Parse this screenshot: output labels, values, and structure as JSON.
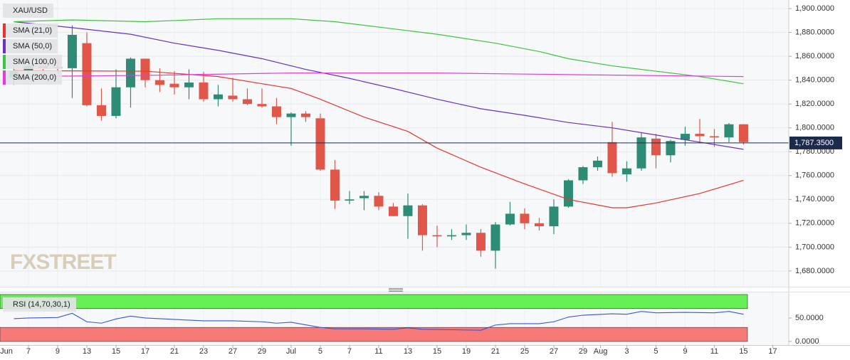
{
  "chart_data": [
    {
      "type": "candlestick",
      "title": "XAU/USD",
      "watermark": "FXSTREET",
      "x": [
        1,
        2,
        3,
        4,
        5,
        6,
        7,
        8,
        9,
        10,
        11,
        12,
        13,
        14,
        15,
        16,
        17,
        18,
        19,
        20,
        21,
        22,
        23,
        24,
        25,
        26,
        27,
        28,
        29,
        30,
        31,
        32,
        33,
        34,
        35,
        36,
        37,
        38,
        39,
        40,
        41,
        42,
        43,
        44,
        45,
        46,
        47,
        48,
        49,
        50,
        51
      ],
      "open": [
        1842,
        1848,
        1852,
        1851,
        1850,
        1871,
        1819,
        1810,
        1834,
        1858,
        1840,
        1837,
        1834,
        1838,
        1824,
        1827,
        1824,
        1820,
        1818,
        1809,
        1812,
        1808,
        1765,
        1739,
        1741,
        1743,
        1734,
        1726,
        1735,
        1710,
        1709,
        1710,
        1712,
        1697,
        1719,
        1728,
        1720,
        1717.5,
        1734,
        1756,
        1767,
        1788,
        1761,
        1766,
        1791,
        1777,
        1790,
        1795,
        1793,
        1792,
        1803
      ],
      "high": [
        1852,
        1856,
        1858,
        1856,
        1886,
        1880,
        1833,
        1849,
        1859,
        1858,
        1850,
        1847.5,
        1849,
        1847,
        1836,
        1842,
        1833,
        1833,
        1825,
        1813,
        1814,
        1812,
        1773,
        1747,
        1747,
        1746,
        1737,
        1745,
        1736,
        1718,
        1715,
        1719,
        1715,
        1721,
        1738,
        1732.5,
        1724.5,
        1740,
        1757,
        1768,
        1776,
        1805,
        1772,
        1796,
        1795,
        1790,
        1801,
        1807.5,
        1799,
        1804,
        1803
      ],
      "low": [
        1836,
        1843,
        1845,
        1846,
        1825,
        1818,
        1806,
        1808,
        1817,
        1834,
        1830,
        1828,
        1824,
        1822,
        1818,
        1822,
        1819,
        1817,
        1803,
        1785,
        1805,
        1764,
        1732,
        1736,
        1731,
        1731,
        1726,
        1707,
        1697,
        1700,
        1706,
        1706,
        1692,
        1682,
        1718,
        1715,
        1714,
        1711,
        1733,
        1753,
        1764,
        1759,
        1755,
        1764,
        1766,
        1771,
        1785,
        1788,
        1784,
        1788,
        1786
      ],
      "close": [
        1848,
        1852,
        1850,
        1850,
        1878,
        1819,
        1810,
        1834,
        1858,
        1840,
        1836,
        1834,
        1838,
        1824,
        1828,
        1824,
        1820,
        1818,
        1809,
        1812,
        1809,
        1765,
        1739,
        1740,
        1743,
        1734,
        1726,
        1735,
        1710,
        1709,
        1710,
        1712,
        1697,
        1719,
        1728,
        1720,
        1717.5,
        1734,
        1756,
        1767,
        1772.5,
        1762,
        1766,
        1792,
        1777,
        1789,
        1795,
        1793,
        1792,
        1803,
        1788
      ],
      "up_color": "#2e8b76",
      "down_color": "#e0574a",
      "series": [
        {
          "name": "SMA (21,0)",
          "color": "#e8352a",
          "x": [
            1,
            10,
            15,
            18,
            20,
            22,
            25,
            28,
            30,
            33,
            36,
            39,
            42,
            43,
            45,
            48,
            51
          ],
          "values": [
            1848,
            1847.5,
            1843,
            1837,
            1833,
            1824,
            1809,
            1797,
            1783,
            1767,
            1753,
            1740,
            1733,
            1733,
            1737,
            1745,
            1756
          ]
        },
        {
          "name": "SMA (50,0)",
          "color": "#6a2fc8",
          "x": [
            1,
            5,
            9,
            12,
            15,
            18,
            21,
            24,
            27,
            30,
            33,
            36,
            39,
            42,
            45,
            48,
            51
          ],
          "values": [
            1889,
            1884,
            1878.5,
            1871,
            1865,
            1858,
            1849,
            1841.5,
            1833,
            1824,
            1816,
            1810.5,
            1804.5,
            1800,
            1794,
            1788,
            1782
          ]
        },
        {
          "name": "SMA (100,0)",
          "color": "#3cc43c",
          "x": [
            1,
            5,
            10,
            15,
            20,
            23,
            27,
            30,
            34,
            37,
            39,
            42,
            45,
            48,
            51
          ],
          "values": [
            1889,
            1890.5,
            1889,
            1891.5,
            1891.5,
            1889,
            1883,
            1878.5,
            1871,
            1864,
            1858,
            1852,
            1847.5,
            1843,
            1837
          ]
        },
        {
          "name": "SMA (200,0)",
          "color": "#e23be0",
          "x": [
            1,
            10,
            20,
            30,
            40,
            51
          ],
          "values": [
            1843,
            1844,
            1846,
            1846,
            1844.5,
            1843
          ]
        }
      ],
      "xlim": [
        0.05,
        54.1
      ],
      "ylim": [
        1666.8,
        1907.2
      ],
      "grid": true,
      "yticks": [
        {
          "value": 1680,
          "label": "1,680.0000"
        },
        {
          "value": 1700,
          "label": "1,700.0000"
        },
        {
          "value": 1720,
          "label": "1,720.0000"
        },
        {
          "value": 1740,
          "label": "1,740.0000"
        },
        {
          "value": 1760,
          "label": "1,760.0000"
        },
        {
          "value": 1780,
          "label": "1,780.0000"
        },
        {
          "value": 1800,
          "label": "1,800.0000"
        },
        {
          "value": 1820,
          "label": "1,820.0000"
        },
        {
          "value": 1840,
          "label": "1,840.0000"
        },
        {
          "value": 1860,
          "label": "1,860.0000"
        },
        {
          "value": 1880,
          "label": "1,880.0000"
        },
        {
          "value": 1900,
          "label": "1,900.0000"
        }
      ],
      "last_price": {
        "value": 1787.35,
        "label": "1,787.3500"
      }
    },
    {
      "type": "line",
      "title": "RSI (14,70,30,1)",
      "color": "#3a55d8",
      "x": [
        1,
        2,
        4,
        5,
        6,
        7,
        8,
        9,
        10,
        12,
        14,
        16,
        18,
        19,
        20,
        22,
        23,
        25,
        27,
        28,
        29,
        33,
        34,
        35,
        37,
        38,
        39,
        40,
        42,
        43,
        44,
        45,
        47,
        49,
        50,
        51
      ],
      "values": [
        48.5,
        50,
        51,
        60,
        42,
        39,
        48,
        54,
        50,
        47,
        44,
        44,
        42,
        39,
        41,
        30,
        27,
        27,
        26,
        29,
        26,
        24,
        35,
        38,
        38,
        42,
        52,
        56,
        59,
        58,
        64,
        61,
        62,
        61,
        64,
        58
      ],
      "bands": [
        {
          "from": 70,
          "to": 100,
          "color": "#66ee55"
        },
        {
          "from": 0,
          "to": 30,
          "color": "#f87a78"
        }
      ],
      "xlim": [
        0.05,
        54.1
      ],
      "ylim": [
        -7.6,
        104.5
      ],
      "yticks": [
        {
          "value": 50,
          "label": "50.0000"
        },
        {
          "value": 0,
          "label": "0.0000"
        }
      ],
      "xticks": [
        {
          "value": 0,
          "label": "Jun"
        },
        {
          "value": 2,
          "label": "7"
        },
        {
          "value": 4,
          "label": "9"
        },
        {
          "value": 6,
          "label": "13"
        },
        {
          "value": 8,
          "label": "15"
        },
        {
          "value": 10,
          "label": "17"
        },
        {
          "value": 12,
          "label": "21"
        },
        {
          "value": 14,
          "label": "23"
        },
        {
          "value": 16,
          "label": "27"
        },
        {
          "value": 18,
          "label": "29"
        },
        {
          "value": 20,
          "label": "Jul"
        },
        {
          "value": 22,
          "label": "5"
        },
        {
          "value": 24,
          "label": "7"
        },
        {
          "value": 26,
          "label": "11"
        },
        {
          "value": 28,
          "label": "13"
        },
        {
          "value": 30,
          "label": "15"
        },
        {
          "value": 32,
          "label": "19"
        },
        {
          "value": 34,
          "label": "21"
        },
        {
          "value": 36,
          "label": "25"
        },
        {
          "value": 38,
          "label": "27"
        },
        {
          "value": 40,
          "label": "29"
        },
        {
          "value": 41.2,
          "label": "Aug"
        },
        {
          "value": 43,
          "label": "3"
        },
        {
          "value": 45,
          "label": "5"
        },
        {
          "value": 47,
          "label": "9"
        },
        {
          "value": 49,
          "label": "11"
        },
        {
          "value": 51,
          "label": "15"
        },
        {
          "value": 53,
          "label": "17"
        }
      ]
    }
  ]
}
